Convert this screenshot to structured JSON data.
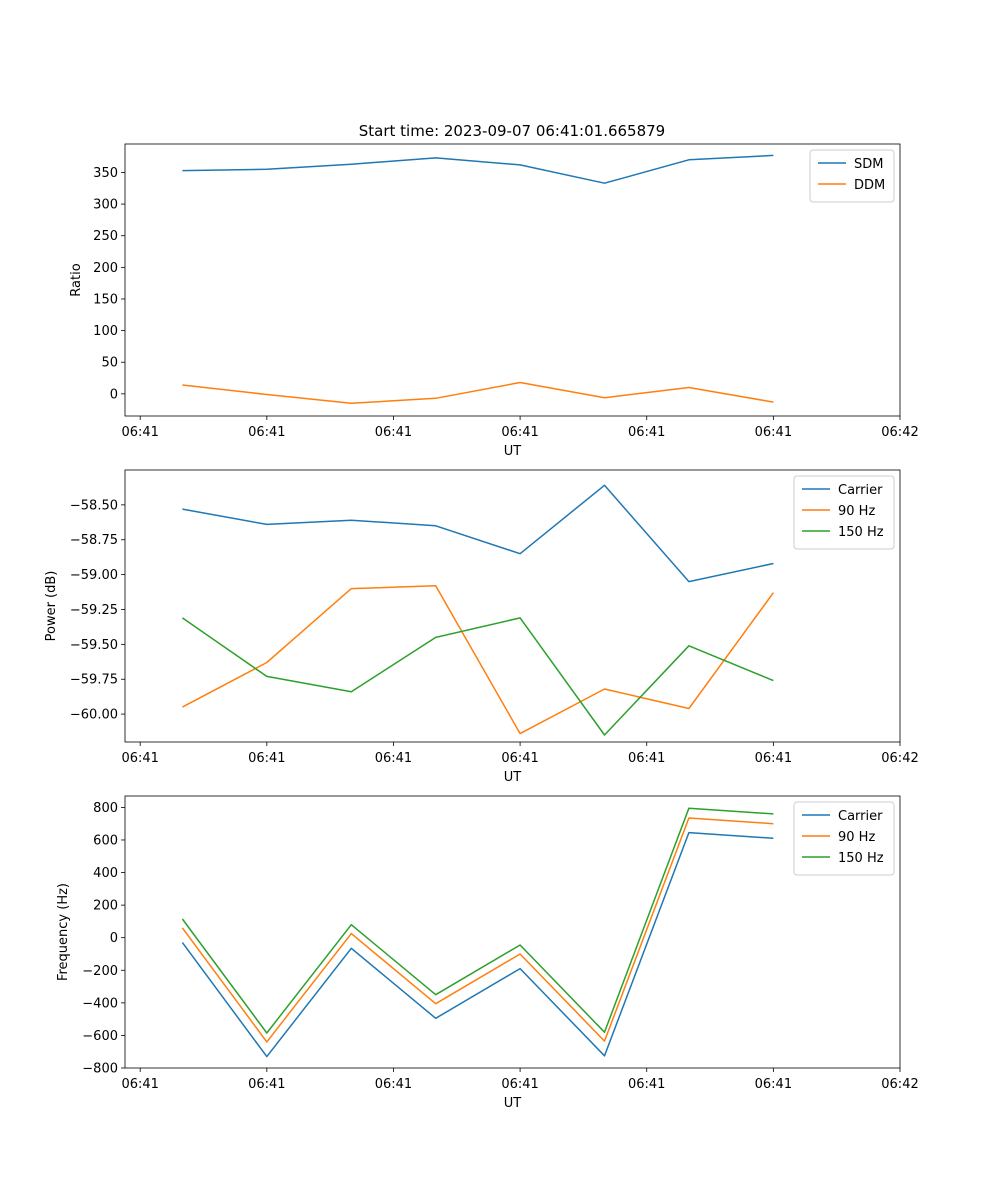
{
  "figure": {
    "title": "Start time: 2023-09-07 06:41:01.665879"
  },
  "colors": {
    "blue": "#1f77b4",
    "orange": "#ff7f0e",
    "green": "#2ca02c"
  },
  "chart_data": [
    {
      "type": "line",
      "title": "Start time: 2023-09-07 06:41:01.665879",
      "xlabel": "UT",
      "ylabel": "Ratio",
      "x": [
        1,
        2,
        3,
        4,
        5,
        6,
        7,
        8
      ],
      "xlim": [
        0.32,
        9.5
      ],
      "xticks": [
        0.5,
        2,
        3.5,
        5,
        6.5,
        8,
        9.5
      ],
      "xtick_labels": [
        "06:41",
        "06:41",
        "06:41",
        "06:41",
        "06:41",
        "06:41",
        "06:42"
      ],
      "ylim": [
        -35,
        395
      ],
      "yticks": [
        0,
        50,
        100,
        150,
        200,
        250,
        300,
        350
      ],
      "ytick_labels": [
        "0",
        "50",
        "100",
        "150",
        "200",
        "250",
        "300",
        "350"
      ],
      "legend_position": "top-right",
      "series": [
        {
          "name": "SDM",
          "color": "#1f77b4",
          "values": [
            353,
            355,
            363,
            373,
            362,
            333,
            370,
            377
          ]
        },
        {
          "name": "DDM",
          "color": "#ff7f0e",
          "values": [
            14,
            -1,
            -15,
            -7,
            18,
            -6,
            10,
            -13
          ]
        }
      ]
    },
    {
      "type": "line",
      "title": "",
      "xlabel": "UT",
      "ylabel": "Power (dB)",
      "x": [
        1,
        2,
        3,
        4,
        5,
        6,
        7,
        8
      ],
      "xlim": [
        0.32,
        9.5
      ],
      "xticks": [
        0.5,
        2,
        3.5,
        5,
        6.5,
        8,
        9.5
      ],
      "xtick_labels": [
        "06:41",
        "06:41",
        "06:41",
        "06:41",
        "06:41",
        "06:41",
        "06:42"
      ],
      "ylim": [
        -60.2,
        -58.25
      ],
      "yticks": [
        -58.5,
        -58.75,
        -59.0,
        -59.25,
        -59.5,
        -59.75,
        -60.0
      ],
      "ytick_labels": [
        "−58.50",
        "−58.75",
        "−59.00",
        "−59.25",
        "−59.50",
        "−59.75",
        "−60.00"
      ],
      "legend_position": "top-right",
      "series": [
        {
          "name": "Carrier",
          "color": "#1f77b4",
          "values": [
            -58.53,
            -58.64,
            -58.61,
            -58.65,
            -58.85,
            -58.36,
            -59.05,
            -58.92
          ]
        },
        {
          "name": "90 Hz",
          "color": "#ff7f0e",
          "values": [
            -59.95,
            -59.63,
            -59.1,
            -59.08,
            -60.14,
            -59.82,
            -59.96,
            -59.13
          ]
        },
        {
          "name": "150 Hz",
          "color": "#2ca02c",
          "values": [
            -59.31,
            -59.73,
            -59.84,
            -59.45,
            -59.31,
            -60.15,
            -59.51,
            -59.76
          ]
        }
      ]
    },
    {
      "type": "line",
      "title": "",
      "xlabel": "UT",
      "ylabel": "Frequency (Hz)",
      "x": [
        1,
        2,
        3,
        4,
        5,
        6,
        7,
        8
      ],
      "xlim": [
        0.32,
        9.5
      ],
      "xticks": [
        0.5,
        2,
        3.5,
        5,
        6.5,
        8,
        9.5
      ],
      "xtick_labels": [
        "06:41",
        "06:41",
        "06:41",
        "06:41",
        "06:41",
        "06:41",
        "06:42"
      ],
      "ylim": [
        -800,
        870
      ],
      "yticks": [
        800,
        600,
        400,
        200,
        0,
        -200,
        -400,
        -600,
        -800
      ],
      "ytick_labels": [
        "800",
        "600",
        "400",
        "200",
        "0",
        "−200",
        "−400",
        "−600",
        "−800"
      ],
      "legend_position": "top-right",
      "series": [
        {
          "name": "Carrier",
          "color": "#1f77b4",
          "values": [
            -30,
            -730,
            -65,
            -495,
            -190,
            -725,
            645,
            610
          ]
        },
        {
          "name": "90 Hz",
          "color": "#ff7f0e",
          "values": [
            60,
            -640,
            25,
            -405,
            -100,
            -635,
            735,
            700
          ]
        },
        {
          "name": "150 Hz",
          "color": "#2ca02c",
          "values": [
            115,
            -585,
            80,
            -350,
            -45,
            -580,
            795,
            760
          ]
        }
      ]
    }
  ]
}
